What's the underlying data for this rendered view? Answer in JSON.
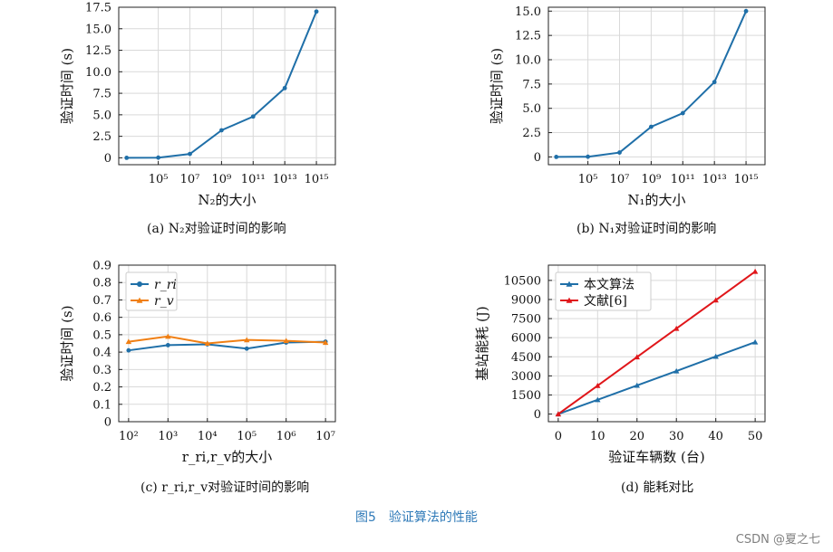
{
  "figure_title": "图5　验证算法的性能",
  "watermark": "CSDN @夏之七",
  "captions": {
    "a": "(a)  N₂对验证时间的影响",
    "b": "(b)  N₁对验证时间的影响",
    "c": "(c)  r_ri,r_v对验证时间的影响",
    "d": "(d)  能耗对比"
  },
  "colors": {
    "blue": "#1f6fa8",
    "orange": "#f07f13",
    "red": "#e0161a",
    "grid": "#d9d9d9"
  },
  "chart_data": [
    {
      "id": "a",
      "type": "line",
      "xlabel": "N₂的大小",
      "ylabel": "验证时间 (s)",
      "xscale": "log",
      "x_tick_labels": [
        "10⁵",
        "10⁷",
        "10⁹",
        "10¹¹",
        "10¹³",
        "10¹⁵"
      ],
      "x_tick_exponents": [
        5,
        7,
        9,
        11,
        13,
        15
      ],
      "xlim_exp": [
        2.5,
        16.2
      ],
      "ylim": [
        -0.8,
        17.5
      ],
      "y_ticks": [
        0,
        2.5,
        5.0,
        7.5,
        10.0,
        12.5,
        15.0,
        17.5
      ],
      "y_tick_labels": [
        "0",
        "2.5",
        "5.0",
        "7.5",
        "10.0",
        "12.5",
        "15.0",
        "17.5"
      ],
      "series": [
        {
          "x_exp": [
            3,
            5,
            7,
            9,
            11,
            13,
            15
          ],
          "values": [
            0,
            0.02,
            0.45,
            3.2,
            4.8,
            8.1,
            17.0
          ]
        }
      ]
    },
    {
      "id": "b",
      "type": "line",
      "xlabel": "N₁的大小",
      "ylabel": "验证时间 (s)",
      "xscale": "log",
      "x_tick_labels": [
        "10⁵",
        "10⁷",
        "10⁹",
        "10¹¹",
        "10¹³",
        "10¹⁵"
      ],
      "x_tick_exponents": [
        5,
        7,
        9,
        11,
        13,
        15
      ],
      "xlim_exp": [
        2.5,
        16.2
      ],
      "ylim": [
        -0.8,
        15.4
      ],
      "y_ticks": [
        0,
        2.5,
        5.0,
        7.5,
        10.0,
        12.5,
        15.0
      ],
      "y_tick_labels": [
        "0",
        "2.5",
        "5.0",
        "7.5",
        "10.0",
        "12.5",
        "15.0"
      ],
      "series": [
        {
          "x_exp": [
            3,
            5,
            7,
            9,
            11,
            13,
            15
          ],
          "values": [
            0,
            0.02,
            0.45,
            3.1,
            4.5,
            7.7,
            15.0
          ]
        }
      ]
    },
    {
      "id": "c",
      "type": "line",
      "xlabel": "r_ri,r_v的大小",
      "ylabel": "验证时间 (s)",
      "xscale": "log",
      "x_tick_labels": [
        "10²",
        "10³",
        "10⁴",
        "10⁵",
        "10⁶",
        "10⁷"
      ],
      "x_tick_exponents": [
        2,
        3,
        4,
        5,
        6,
        7
      ],
      "xlim_exp": [
        1.75,
        7.25
      ],
      "ylim": [
        0,
        0.9
      ],
      "y_ticks": [
        0,
        0.1,
        0.2,
        0.3,
        0.4,
        0.5,
        0.6,
        0.7,
        0.8,
        0.9
      ],
      "y_tick_labels": [
        "0",
        "0.1",
        "0.2",
        "0.3",
        "0.4",
        "0.5",
        "0.6",
        "0.7",
        "0.8",
        "0.9"
      ],
      "legend_position": "top-left",
      "series": [
        {
          "name": "r_ri",
          "marker": "circle",
          "color": "#1f6fa8",
          "x_exp": [
            2,
            3,
            4,
            5,
            6,
            7
          ],
          "values": [
            0.41,
            0.44,
            0.445,
            0.42,
            0.455,
            0.46
          ]
        },
        {
          "name": "r_v",
          "marker": "triangle",
          "color": "#f07f13",
          "x_exp": [
            2,
            3,
            4,
            5,
            6,
            7
          ],
          "values": [
            0.46,
            0.49,
            0.45,
            0.47,
            0.465,
            0.455
          ]
        }
      ]
    },
    {
      "id": "d",
      "type": "line",
      "xlabel": "验证车辆数 (台)",
      "ylabel": "基站能耗 (J)",
      "xlim": [
        -2.5,
        52.5
      ],
      "x_ticks": [
        0,
        10,
        20,
        30,
        40,
        50
      ],
      "x_tick_labels": [
        "0",
        "10",
        "20",
        "30",
        "40",
        "50"
      ],
      "ylim": [
        -600,
        11700
      ],
      "y_ticks": [
        0,
        1500,
        3000,
        4500,
        6000,
        7500,
        9000,
        10500
      ],
      "y_tick_labels": [
        "0",
        "1500",
        "3000",
        "4500",
        "6000",
        "7500",
        "9000",
        "10500"
      ],
      "legend_position": "top-left",
      "series": [
        {
          "name": "本文算法",
          "color": "#1f6fa8",
          "x": [
            0,
            10,
            20,
            30,
            40,
            50
          ],
          "values": [
            0,
            1120,
            2250,
            3380,
            4520,
            5650
          ]
        },
        {
          "name": "文献[6]",
          "color": "#e0161a",
          "x": [
            0,
            10,
            20,
            30,
            40,
            50
          ],
          "values": [
            0,
            2230,
            4480,
            6720,
            8950,
            11200
          ]
        }
      ]
    }
  ]
}
